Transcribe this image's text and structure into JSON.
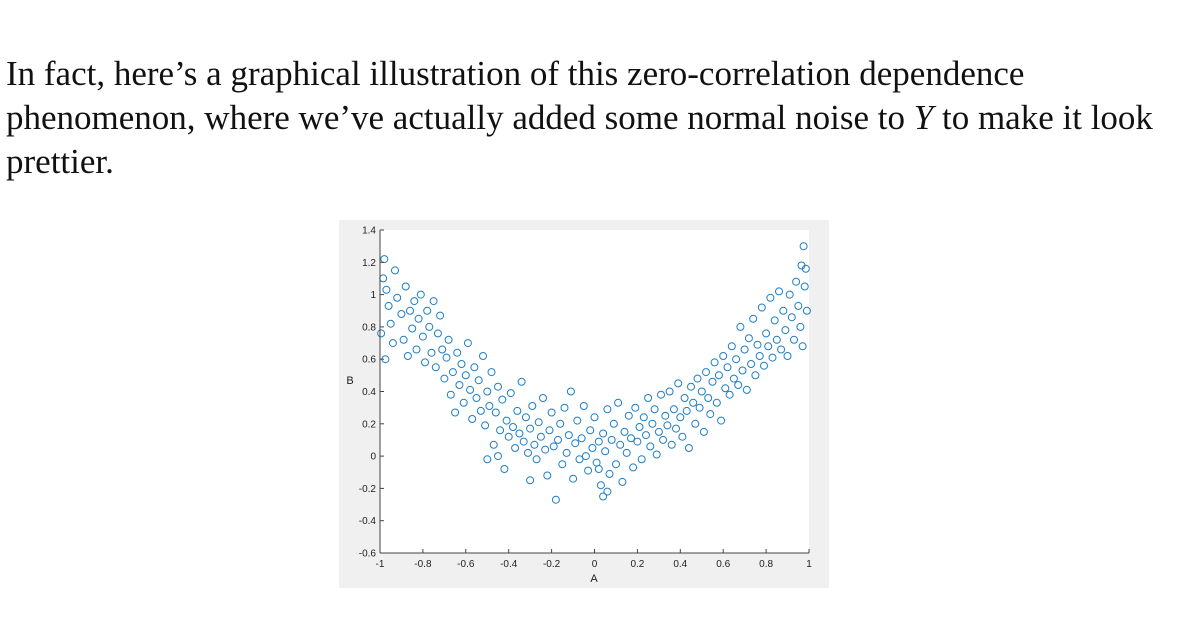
{
  "text": {
    "before_y": "In fact, here’s a graphical illustration of this zero-correlation dependence phenomenon, where we’ve actually added some normal noise to ",
    "y_symbol": "Y",
    "after_y": " to make it look prettier."
  },
  "chart_data": {
    "type": "scatter",
    "xlabel": "A",
    "ylabel": "B",
    "xlim": [
      -1,
      1
    ],
    "ylim": [
      -0.6,
      1.4
    ],
    "x_ticks": [
      -1,
      -0.8,
      -0.6,
      -0.4,
      -0.2,
      0,
      0.2,
      0.4,
      0.6,
      0.8,
      1
    ],
    "x_tick_labels": [
      "-1",
      "-0.8",
      "-0.6",
      "-0.4",
      "-0.2",
      "0",
      "0.2",
      "0.4",
      "0.6",
      "0.8",
      "1"
    ],
    "y_ticks": [
      -0.6,
      -0.4,
      -0.2,
      0,
      0.2,
      0.4,
      0.6,
      0.8,
      1,
      1.2,
      1.4
    ],
    "y_tick_labels": [
      "-0.6",
      "-0.4",
      "-0.2",
      "0",
      "0.2",
      "0.4",
      "0.6",
      "0.8",
      "1",
      "1.2",
      "1.4"
    ],
    "grid": false,
    "marker": "open-circle",
    "marker_color": "#1f7fc4",
    "points": [
      [
        -0.98,
        1.22
      ],
      [
        -0.97,
        1.03
      ],
      [
        -0.96,
        0.93
      ],
      [
        -0.95,
        0.82
      ],
      [
        -0.94,
        0.7
      ],
      [
        -0.93,
        1.15
      ],
      [
        -0.92,
        0.98
      ],
      [
        -0.9,
        0.88
      ],
      [
        -0.89,
        0.72
      ],
      [
        -0.88,
        1.05
      ],
      [
        -0.87,
        0.62
      ],
      [
        -0.86,
        0.9
      ],
      [
        -0.85,
        0.79
      ],
      [
        -0.84,
        0.96
      ],
      [
        -0.83,
        0.66
      ],
      [
        -0.82,
        0.85
      ],
      [
        -0.81,
        1.0
      ],
      [
        -0.8,
        0.74
      ],
      [
        -0.79,
        0.58
      ],
      [
        -0.78,
        0.9
      ],
      [
        -0.77,
        0.8
      ],
      [
        -0.76,
        0.64
      ],
      [
        -0.75,
        0.96
      ],
      [
        -0.74,
        0.55
      ],
      [
        -0.73,
        0.76
      ],
      [
        -0.72,
        0.87
      ],
      [
        -0.71,
        0.66
      ],
      [
        -0.7,
        0.48
      ],
      [
        -0.69,
        0.61
      ],
      [
        -0.68,
        0.72
      ],
      [
        -0.67,
        0.38
      ],
      [
        -0.66,
        0.52
      ],
      [
        -0.65,
        0.27
      ],
      [
        -0.64,
        0.64
      ],
      [
        -0.63,
        0.44
      ],
      [
        -0.62,
        0.57
      ],
      [
        -0.61,
        0.33
      ],
      [
        -0.6,
        0.5
      ],
      [
        -0.59,
        0.7
      ],
      [
        -0.58,
        0.41
      ],
      [
        -0.57,
        0.23
      ],
      [
        -0.56,
        0.55
      ],
      [
        -0.55,
        0.36
      ],
      [
        -0.54,
        0.47
      ],
      [
        -0.53,
        0.28
      ],
      [
        -0.52,
        0.62
      ],
      [
        -0.51,
        0.19
      ],
      [
        -0.5,
        0.4
      ],
      [
        -0.49,
        0.31
      ],
      [
        -0.48,
        0.52
      ],
      [
        -0.47,
        0.07
      ],
      [
        -0.46,
        0.27
      ],
      [
        -0.45,
        0.43
      ],
      [
        -0.44,
        0.16
      ],
      [
        -0.43,
        0.35
      ],
      [
        -0.42,
        -0.08
      ],
      [
        -0.41,
        0.22
      ],
      [
        -0.4,
        0.12
      ],
      [
        -0.39,
        0.39
      ],
      [
        -0.38,
        0.18
      ],
      [
        -0.37,
        0.05
      ],
      [
        -0.36,
        0.28
      ],
      [
        -0.35,
        0.14
      ],
      [
        -0.34,
        0.46
      ],
      [
        -0.33,
        0.09
      ],
      [
        -0.32,
        0.24
      ],
      [
        -0.31,
        0.02
      ],
      [
        -0.3,
        0.17
      ],
      [
        -0.29,
        0.31
      ],
      [
        -0.28,
        0.07
      ],
      [
        -0.27,
        -0.02
      ],
      [
        -0.26,
        0.21
      ],
      [
        -0.25,
        0.12
      ],
      [
        -0.24,
        0.36
      ],
      [
        -0.23,
        0.04
      ],
      [
        -0.22,
        -0.12
      ],
      [
        -0.21,
        0.16
      ],
      [
        -0.2,
        0.27
      ],
      [
        -0.19,
        0.06
      ],
      [
        -0.18,
        -0.27
      ],
      [
        -0.17,
        0.1
      ],
      [
        -0.16,
        0.2
      ],
      [
        -0.15,
        -0.05
      ],
      [
        -0.14,
        0.3
      ],
      [
        -0.13,
        0.02
      ],
      [
        -0.12,
        0.13
      ],
      [
        -0.11,
        0.4
      ],
      [
        -0.1,
        -0.14
      ],
      [
        -0.09,
        0.08
      ],
      [
        -0.08,
        0.22
      ],
      [
        -0.07,
        -0.02
      ],
      [
        -0.06,
        0.11
      ],
      [
        -0.05,
        0.31
      ],
      [
        -0.04,
        0.0
      ],
      [
        -0.03,
        -0.09
      ],
      [
        -0.02,
        0.16
      ],
      [
        -0.01,
        0.05
      ],
      [
        0.0,
        0.24
      ],
      [
        0.01,
        -0.04
      ],
      [
        0.02,
        0.09
      ],
      [
        0.03,
        -0.18
      ],
      [
        0.04,
        0.14
      ],
      [
        0.05,
        0.03
      ],
      [
        0.06,
        0.29
      ],
      [
        0.07,
        -0.11
      ],
      [
        0.08,
        0.1
      ],
      [
        0.09,
        0.2
      ],
      [
        0.1,
        -0.05
      ],
      [
        0.11,
        0.33
      ],
      [
        0.12,
        0.07
      ],
      [
        0.13,
        -0.16
      ],
      [
        0.14,
        0.15
      ],
      [
        0.15,
        0.02
      ],
      [
        0.16,
        0.25
      ],
      [
        0.17,
        0.11
      ],
      [
        0.18,
        -0.07
      ],
      [
        0.19,
        0.3
      ],
      [
        0.2,
        0.09
      ],
      [
        0.21,
        0.18
      ],
      [
        0.22,
        -0.02
      ],
      [
        0.23,
        0.24
      ],
      [
        0.24,
        0.13
      ],
      [
        0.25,
        0.36
      ],
      [
        0.26,
        0.06
      ],
      [
        0.27,
        0.2
      ],
      [
        0.28,
        0.29
      ],
      [
        0.29,
        0.01
      ],
      [
        0.3,
        0.15
      ],
      [
        0.31,
        0.38
      ],
      [
        0.32,
        0.1
      ],
      [
        0.33,
        0.25
      ],
      [
        0.34,
        0.19
      ],
      [
        0.35,
        0.4
      ],
      [
        0.36,
        0.07
      ],
      [
        0.37,
        0.29
      ],
      [
        0.38,
        0.17
      ],
      [
        0.39,
        0.45
      ],
      [
        0.4,
        0.24
      ],
      [
        0.41,
        0.12
      ],
      [
        0.42,
        0.36
      ],
      [
        0.43,
        0.28
      ],
      [
        0.44,
        0.05
      ],
      [
        0.45,
        0.43
      ],
      [
        0.46,
        0.33
      ],
      [
        0.47,
        0.2
      ],
      [
        0.48,
        0.48
      ],
      [
        0.49,
        0.3
      ],
      [
        0.5,
        0.4
      ],
      [
        0.51,
        0.15
      ],
      [
        0.52,
        0.52
      ],
      [
        0.53,
        0.36
      ],
      [
        0.54,
        0.26
      ],
      [
        0.55,
        0.46
      ],
      [
        0.56,
        0.58
      ],
      [
        0.57,
        0.33
      ],
      [
        0.58,
        0.5
      ],
      [
        0.59,
        0.22
      ],
      [
        0.6,
        0.62
      ],
      [
        0.61,
        0.42
      ],
      [
        0.62,
        0.55
      ],
      [
        0.63,
        0.38
      ],
      [
        0.64,
        0.68
      ],
      [
        0.65,
        0.48
      ],
      [
        0.66,
        0.6
      ],
      [
        0.67,
        0.44
      ],
      [
        0.68,
        0.8
      ],
      [
        0.69,
        0.53
      ],
      [
        0.7,
        0.66
      ],
      [
        0.71,
        0.41
      ],
      [
        0.72,
        0.73
      ],
      [
        0.73,
        0.57
      ],
      [
        0.74,
        0.85
      ],
      [
        0.75,
        0.5
      ],
      [
        0.76,
        0.69
      ],
      [
        0.77,
        0.62
      ],
      [
        0.78,
        0.92
      ],
      [
        0.79,
        0.56
      ],
      [
        0.8,
        0.76
      ],
      [
        0.81,
        0.68
      ],
      [
        0.82,
        0.98
      ],
      [
        0.83,
        0.61
      ],
      [
        0.84,
        0.84
      ],
      [
        0.85,
        0.72
      ],
      [
        0.86,
        1.02
      ],
      [
        0.87,
        0.66
      ],
      [
        0.88,
        0.9
      ],
      [
        0.89,
        0.78
      ],
      [
        0.9,
        0.62
      ],
      [
        0.91,
        1.0
      ],
      [
        0.92,
        0.86
      ],
      [
        0.93,
        0.72
      ],
      [
        0.94,
        1.08
      ],
      [
        0.95,
        0.93
      ],
      [
        0.96,
        0.8
      ],
      [
        0.97,
        0.68
      ],
      [
        0.98,
        1.05
      ],
      [
        0.99,
        0.9
      ],
      [
        0.985,
        1.16
      ],
      [
        0.975,
        1.3
      ],
      [
        0.965,
        1.18
      ],
      [
        -0.985,
        1.1
      ],
      [
        -0.995,
        0.76
      ],
      [
        -0.975,
        0.6
      ],
      [
        0.02,
        -0.08
      ],
      [
        0.04,
        -0.25
      ],
      [
        0.06,
        -0.22
      ],
      [
        -0.3,
        -0.15
      ],
      [
        -0.45,
        0.0
      ],
      [
        -0.5,
        -0.02
      ]
    ]
  }
}
